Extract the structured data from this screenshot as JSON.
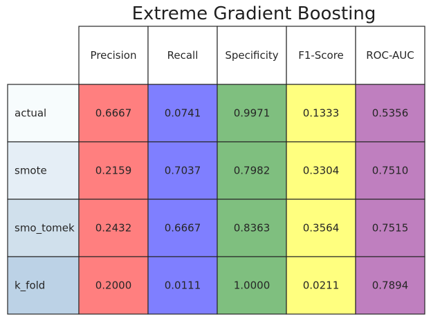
{
  "chart_data": {
    "type": "table",
    "title": "Extreme Gradient Boosting",
    "columns": [
      "Precision",
      "Recall",
      "Specificity",
      "F1-Score",
      "ROC-AUC"
    ],
    "rows": [
      "actual",
      "smote",
      "smo_tomek",
      "k_fold"
    ],
    "values": [
      [
        "0.6667",
        "0.0741",
        "0.9971",
        "0.1333",
        "0.5356"
      ],
      [
        "0.2159",
        "0.7037",
        "0.7982",
        "0.3304",
        "0.7510"
      ],
      [
        "0.2432",
        "0.6667",
        "0.8363",
        "0.3564",
        "0.7515"
      ],
      [
        "0.2000",
        "0.0111",
        "1.0000",
        "0.0211",
        "0.7894"
      ]
    ],
    "column_colors": [
      "#ff7f7f",
      "#7f7fff",
      "#7fbf7f",
      "#ffff7f",
      "#bf7fbf"
    ],
    "row_colors": [
      "#f7fcfd",
      "#e5eef6",
      "#d0e0ec",
      "#bcd2e6"
    ],
    "header_color": "#ffffff",
    "grid_color": "#262626"
  }
}
